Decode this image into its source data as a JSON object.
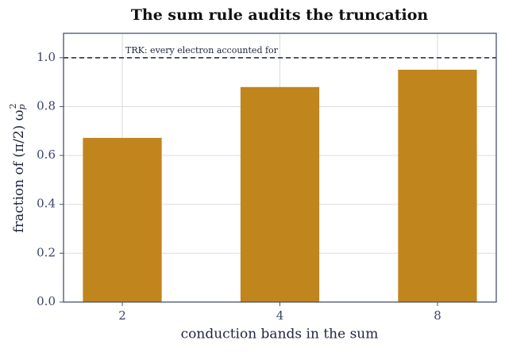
{
  "chart_data": {
    "type": "bar",
    "title": "The sum rule audits the truncation",
    "xlabel": "conduction bands in the sum",
    "ylabel": {
      "text": "fraction of (π/2) ω",
      "sub": "p",
      "sup": "2"
    },
    "categories": [
      "2",
      "4",
      "8"
    ],
    "values": [
      0.672,
      0.88,
      0.951
    ],
    "color": "#c0851c",
    "ylim": [
      0,
      1.1
    ],
    "yticks": [
      {
        "value": 0,
        "label": "0.0"
      },
      {
        "value": 0.2,
        "label": "0.2"
      },
      {
        "value": 0.4,
        "label": "0.4"
      },
      {
        "value": 0.6,
        "label": "0.6"
      },
      {
        "value": 0.8,
        "label": "0.8"
      },
      {
        "value": 1,
        "label": "1.0"
      }
    ],
    "grid": true,
    "reference_line": {
      "value": 1,
      "label": "TRK: every electron accounted for"
    }
  }
}
